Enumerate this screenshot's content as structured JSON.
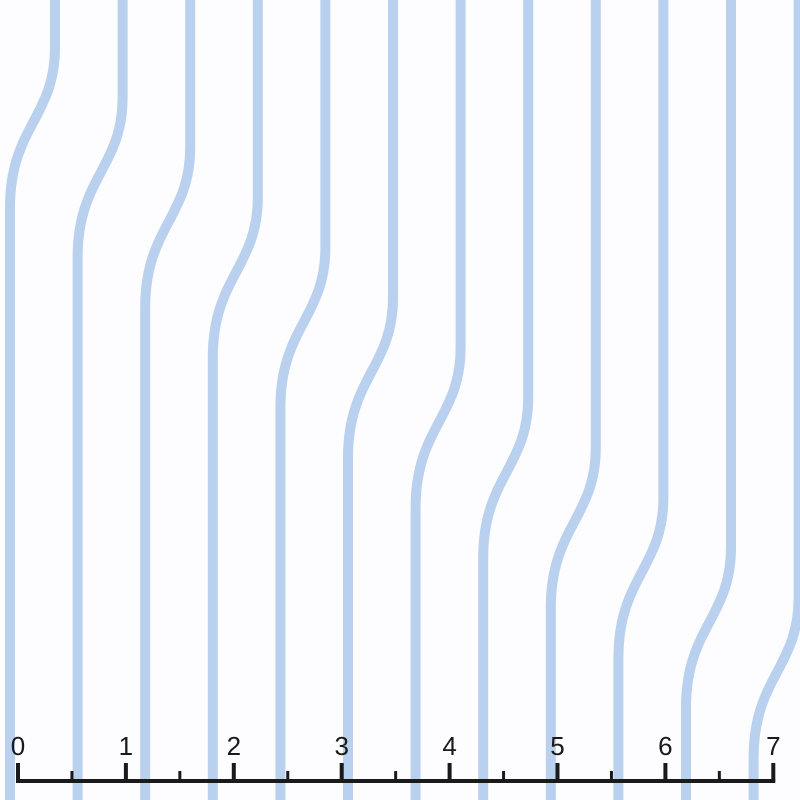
{
  "colors": {
    "background": "#fdfdff",
    "stripe": "#b9d0ee",
    "ruler": "#1a1a1a"
  },
  "ruler": {
    "labels": [
      "0",
      "1",
      "2",
      "3",
      "4",
      "5",
      "6",
      "7"
    ],
    "minor_ticks_per_unit": 2
  }
}
